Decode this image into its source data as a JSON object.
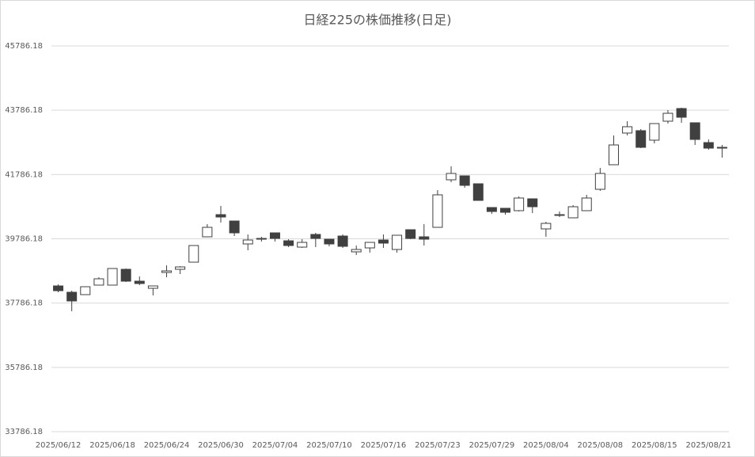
{
  "chart_data": {
    "type": "candlestick",
    "title": "日経225の株価推移(日足)",
    "categories": [
      "2025/06/12",
      null,
      null,
      null,
      "2025/06/18",
      null,
      null,
      null,
      "2025/06/24",
      null,
      null,
      null,
      "2025/06/30",
      null,
      null,
      null,
      "2025/07/04",
      null,
      null,
      null,
      "2025/07/10",
      null,
      null,
      null,
      "2025/07/16",
      null,
      null,
      null,
      "2025/07/23",
      null,
      null,
      null,
      "2025/07/29",
      null,
      null,
      null,
      "2025/08/04",
      null,
      null,
      null,
      "2025/08/08",
      null,
      null,
      null,
      "2025/08/15",
      null,
      null,
      null,
      "2025/08/21",
      null
    ],
    "open": [
      38320,
      38123,
      38049,
      38345,
      38345,
      38837,
      38468,
      38246,
      38739,
      38837,
      39059,
      39848,
      40538,
      40340,
      39626,
      39774,
      39971,
      39724,
      39527,
      39922,
      39774,
      39872,
      39380,
      39503,
      39749,
      39454,
      40069,
      39848,
      40143,
      41622,
      41745,
      41498,
      40759,
      40735,
      40661,
      41030,
      40094,
      40513,
      40439,
      40661,
      41326,
      42090,
      43076,
      43150,
      42854,
      43445,
      43839,
      43396,
      42780,
      42632
    ],
    "high": [
      38370,
      38172,
      38295,
      38591,
      38862,
      38862,
      38616,
      38320,
      38961,
      38936,
      39577,
      40242,
      40809,
      40340,
      39922,
      39848,
      39971,
      39774,
      39774,
      39971,
      39774,
      39922,
      39577,
      39675,
      39922,
      39897,
      40069,
      40242,
      41301,
      42041,
      41745,
      41498,
      40759,
      40735,
      41104,
      41030,
      40316,
      40636,
      40833,
      41154,
      41991,
      43002,
      43445,
      43199,
      43371,
      43790,
      43864,
      43396,
      42878,
      42706
    ],
    "low": [
      38123,
      37532,
      38049,
      38345,
      38345,
      38443,
      38345,
      38024,
      38591,
      38690,
      39059,
      39848,
      40291,
      39872,
      39429,
      39700,
      39700,
      39527,
      39503,
      39527,
      39552,
      39503,
      39281,
      39355,
      39503,
      39355,
      39774,
      39577,
      40143,
      41548,
      41375,
      40981,
      40562,
      40538,
      40636,
      40587,
      39848,
      40464,
      40439,
      40661,
      41277,
      42090,
      43002,
      42607,
      42755,
      43371,
      43396,
      42706,
      42558,
      42312
    ],
    "close": [
      38172,
      37852,
      38295,
      38542,
      38862,
      38468,
      38394,
      38320,
      38788,
      38911,
      39577,
      40143,
      40464,
      39971,
      39749,
      39798,
      39798,
      39577,
      39675,
      39798,
      39626,
      39552,
      39454,
      39675,
      39651,
      39897,
      39798,
      39774,
      41154,
      41819,
      41449,
      40981,
      40636,
      40611,
      41055,
      40784,
      40266,
      40538,
      40784,
      41055,
      41819,
      42706,
      43273,
      42632,
      43371,
      43691,
      43568,
      42878,
      42607,
      42607
    ],
    "up_color": "#ffffff",
    "down_color": "#404040",
    "ylim": [
      33786.18,
      45786.18
    ],
    "yticks": [
      33786.18,
      35786.18,
      37786.18,
      39786.18,
      41786.18,
      43786.18,
      45786.18
    ],
    "grid": true
  }
}
